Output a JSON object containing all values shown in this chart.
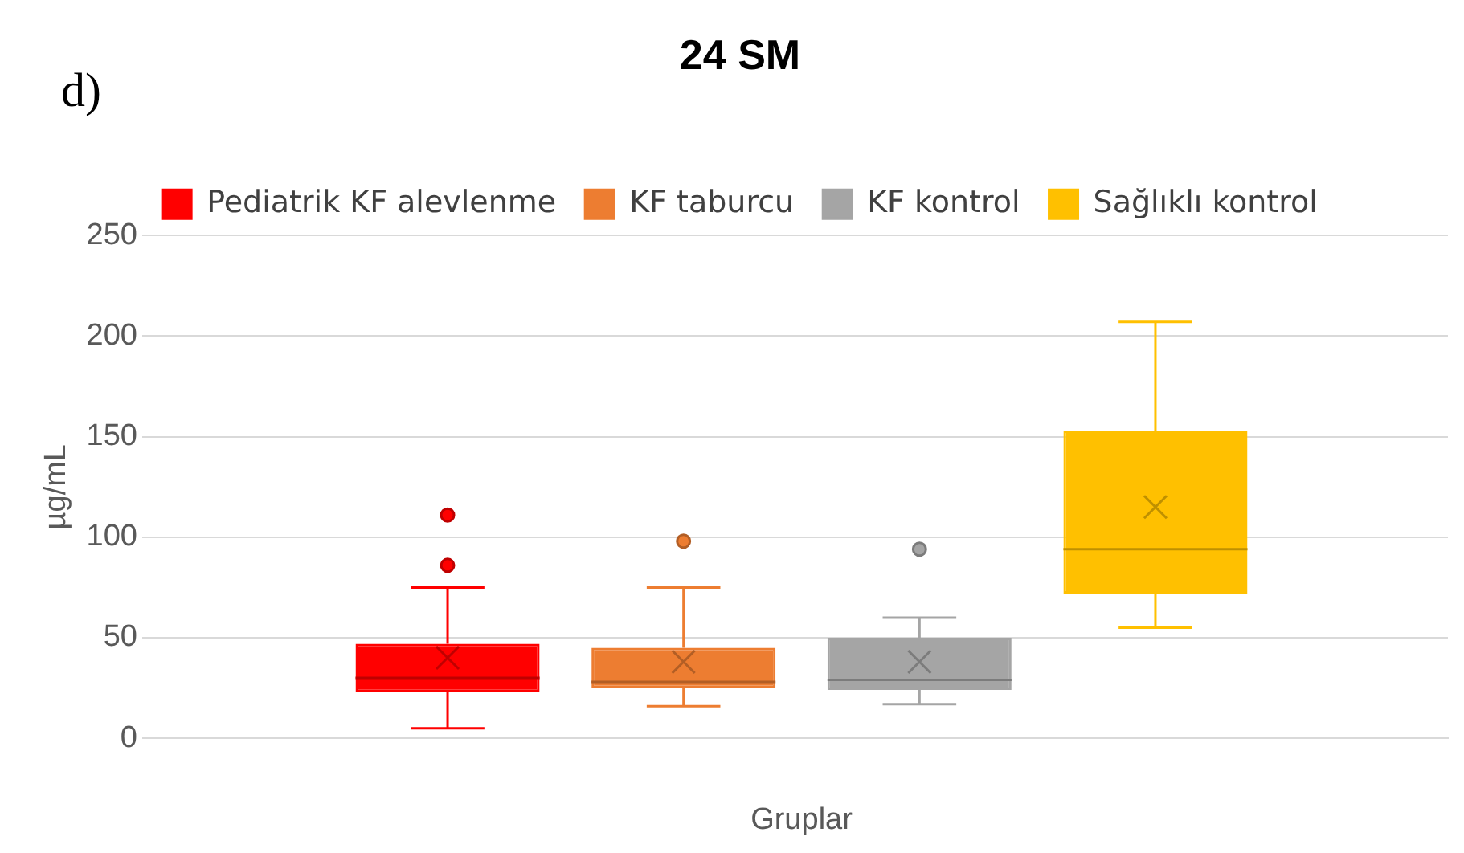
{
  "chart_data": {
    "type": "box",
    "title": "24 SM",
    "ylabel": "µg/mL",
    "xlabel": "Gruplar",
    "annotations": [
      "d)"
    ],
    "categories": [
      null
    ],
    "ylim": [
      0,
      250
    ],
    "yticks": [
      0,
      50,
      100,
      150,
      200,
      250
    ],
    "grid": "y",
    "legend": "top",
    "series": [
      {
        "name": "Pediatrik KF alevlenme",
        "color": "#ff0000",
        "boxes": [
          {
            "low": 5,
            "q1": 23,
            "median": 30,
            "q3": 47,
            "high": 75,
            "mean": 40,
            "outliers": [
              86,
              111
            ]
          }
        ]
      },
      {
        "name": "KF taburcu",
        "color": "#ed7d31",
        "boxes": [
          {
            "low": 16,
            "q1": 25,
            "median": 28,
            "q3": 45,
            "high": 75,
            "mean": 38,
            "outliers": [
              98
            ]
          }
        ]
      },
      {
        "name": "KF kontrol",
        "color": "#a5a5a5",
        "boxes": [
          {
            "low": 17,
            "q1": 24,
            "median": 29,
            "q3": 50,
            "high": 60,
            "mean": 38,
            "outliers": [
              94
            ]
          }
        ]
      },
      {
        "name": "Sağlıklı kontrol",
        "color": "#ffc000",
        "boxes": [
          {
            "low": 55,
            "q1": 72,
            "median": 94,
            "q3": 153,
            "high": 207,
            "mean": 115
          }
        ]
      }
    ]
  }
}
